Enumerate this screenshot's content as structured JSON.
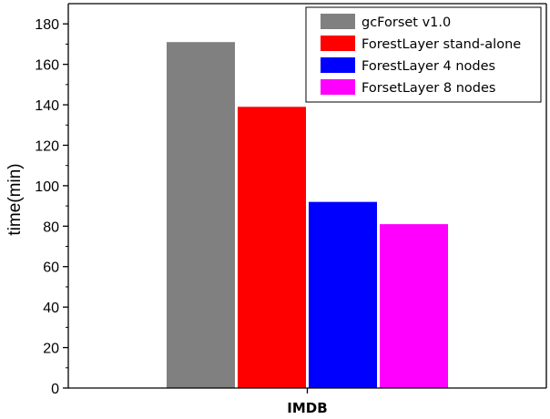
{
  "chart_data": {
    "type": "bar",
    "categories": [
      "IMDB"
    ],
    "series": [
      {
        "name": "gcForset v1.0",
        "color": "#808080",
        "values": [
          171
        ]
      },
      {
        "name": "ForestLayer stand-alone",
        "color": "#ff0000",
        "values": [
          139
        ]
      },
      {
        "name": "ForestLayer 4 nodes",
        "color": "#0000ff",
        "values": [
          92
        ]
      },
      {
        "name": "ForsetLayer 8 nodes",
        "color": "#ff00ff",
        "values": [
          81
        ]
      }
    ],
    "ylabel": "time(min)",
    "xlabel": "",
    "ylim": [
      0,
      190
    ],
    "yticks": [
      0,
      20,
      40,
      60,
      80,
      100,
      120,
      140,
      160,
      180
    ],
    "grid": false,
    "legend_position": "top-right"
  }
}
